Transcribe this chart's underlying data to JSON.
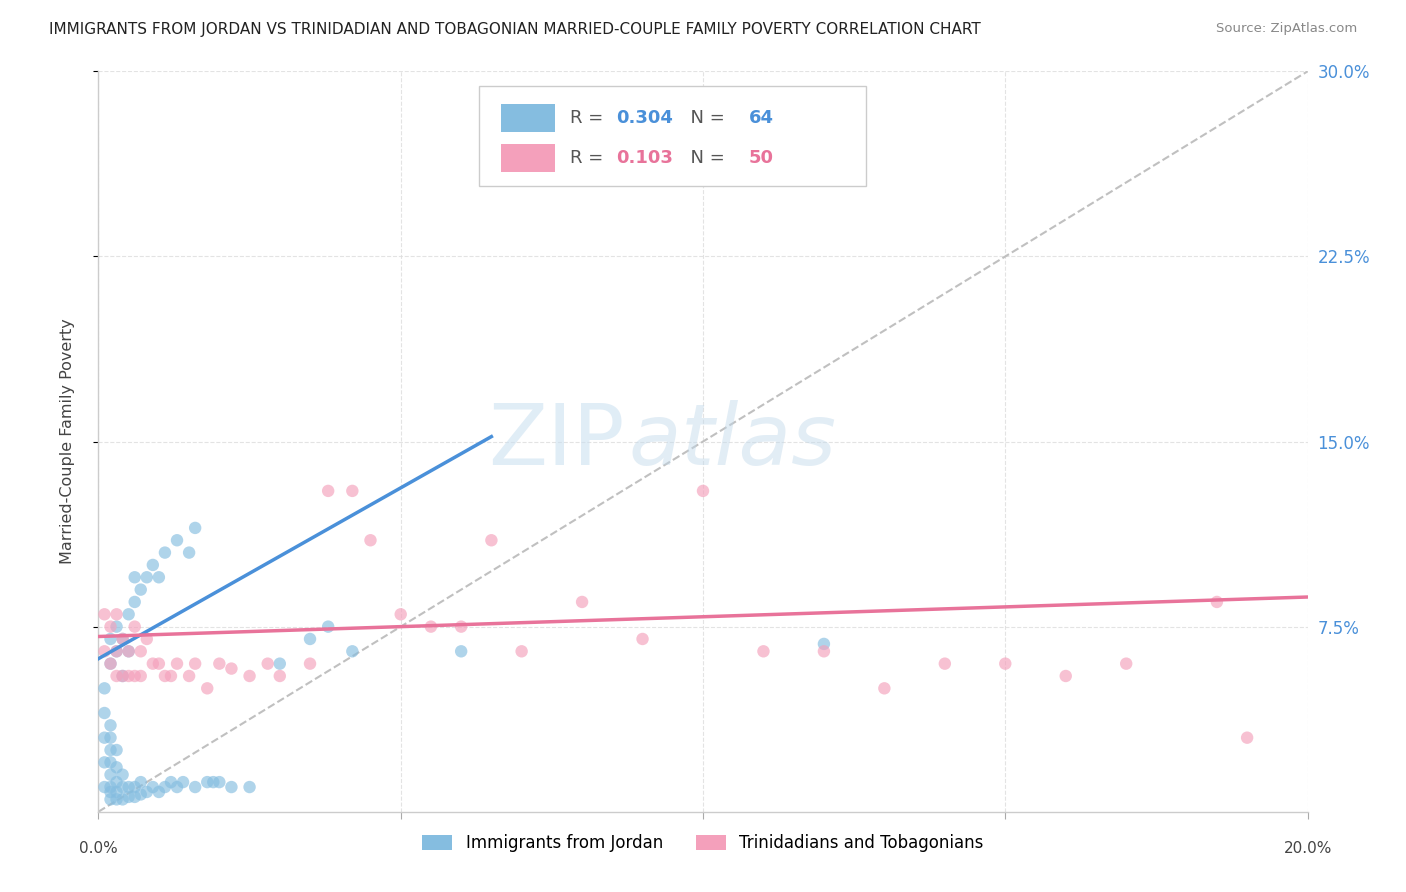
{
  "title": "IMMIGRANTS FROM JORDAN VS TRINIDADIAN AND TOBAGONIAN MARRIED-COUPLE FAMILY POVERTY CORRELATION CHART",
  "source": "Source: ZipAtlas.com",
  "ylabel": "Married-Couple Family Poverty",
  "xlim": [
    0.0,
    0.2
  ],
  "ylim": [
    0.0,
    0.3
  ],
  "xticks": [
    0.0,
    0.05,
    0.1,
    0.15,
    0.2
  ],
  "yticks_right": [
    0.075,
    0.15,
    0.225,
    0.3
  ],
  "yticklabels_right": [
    "7.5%",
    "15.0%",
    "22.5%",
    "30.0%"
  ],
  "blue_color": "#85bde0",
  "pink_color": "#f4a0bb",
  "blue_line_color": "#4a90d9",
  "pink_line_color": "#e8739a",
  "dashed_line_color": "#c0c0c0",
  "R_blue": 0.304,
  "N_blue": 64,
  "R_pink": 0.103,
  "N_pink": 50,
  "watermark_zip": "ZIP",
  "watermark_atlas": "atlas",
  "legend_label_blue": "Immigrants from Jordan",
  "legend_label_pink": "Trinidadians and Tobagonians",
  "blue_line_x0": 0.0,
  "blue_line_y0": 0.062,
  "blue_line_x1": 0.065,
  "blue_line_y1": 0.152,
  "pink_line_x0": 0.0,
  "pink_line_y0": 0.071,
  "pink_line_x1": 0.2,
  "pink_line_y1": 0.087,
  "blue_pts_x": [
    0.001,
    0.001,
    0.001,
    0.001,
    0.001,
    0.002,
    0.002,
    0.002,
    0.002,
    0.002,
    0.002,
    0.002,
    0.002,
    0.002,
    0.002,
    0.003,
    0.003,
    0.003,
    0.003,
    0.003,
    0.003,
    0.003,
    0.004,
    0.004,
    0.004,
    0.004,
    0.004,
    0.005,
    0.005,
    0.005,
    0.005,
    0.006,
    0.006,
    0.006,
    0.006,
    0.007,
    0.007,
    0.007,
    0.008,
    0.008,
    0.009,
    0.009,
    0.01,
    0.01,
    0.011,
    0.011,
    0.012,
    0.013,
    0.013,
    0.014,
    0.015,
    0.016,
    0.016,
    0.018,
    0.019,
    0.02,
    0.022,
    0.025,
    0.03,
    0.035,
    0.038,
    0.042,
    0.06,
    0.12
  ],
  "blue_pts_y": [
    0.01,
    0.02,
    0.03,
    0.04,
    0.05,
    0.005,
    0.008,
    0.01,
    0.015,
    0.02,
    0.025,
    0.03,
    0.035,
    0.06,
    0.07,
    0.005,
    0.008,
    0.012,
    0.018,
    0.025,
    0.065,
    0.075,
    0.005,
    0.01,
    0.015,
    0.055,
    0.07,
    0.006,
    0.01,
    0.065,
    0.08,
    0.006,
    0.01,
    0.085,
    0.095,
    0.007,
    0.012,
    0.09,
    0.008,
    0.095,
    0.01,
    0.1,
    0.008,
    0.095,
    0.01,
    0.105,
    0.012,
    0.01,
    0.11,
    0.012,
    0.105,
    0.01,
    0.115,
    0.012,
    0.012,
    0.012,
    0.01,
    0.01,
    0.06,
    0.07,
    0.075,
    0.065,
    0.065,
    0.068
  ],
  "pink_pts_x": [
    0.001,
    0.001,
    0.002,
    0.002,
    0.003,
    0.003,
    0.003,
    0.004,
    0.004,
    0.005,
    0.005,
    0.006,
    0.006,
    0.007,
    0.007,
    0.008,
    0.009,
    0.01,
    0.011,
    0.012,
    0.013,
    0.015,
    0.016,
    0.018,
    0.02,
    0.022,
    0.025,
    0.028,
    0.03,
    0.035,
    0.038,
    0.042,
    0.045,
    0.05,
    0.055,
    0.06,
    0.065,
    0.07,
    0.08,
    0.09,
    0.1,
    0.11,
    0.12,
    0.13,
    0.14,
    0.15,
    0.16,
    0.17,
    0.185,
    0.19
  ],
  "pink_pts_y": [
    0.065,
    0.08,
    0.06,
    0.075,
    0.055,
    0.065,
    0.08,
    0.055,
    0.07,
    0.055,
    0.065,
    0.055,
    0.075,
    0.055,
    0.065,
    0.07,
    0.06,
    0.06,
    0.055,
    0.055,
    0.06,
    0.055,
    0.06,
    0.05,
    0.06,
    0.058,
    0.055,
    0.06,
    0.055,
    0.06,
    0.13,
    0.13,
    0.11,
    0.08,
    0.075,
    0.075,
    0.11,
    0.065,
    0.085,
    0.07,
    0.13,
    0.065,
    0.065,
    0.05,
    0.06,
    0.06,
    0.055,
    0.06,
    0.085,
    0.03
  ]
}
